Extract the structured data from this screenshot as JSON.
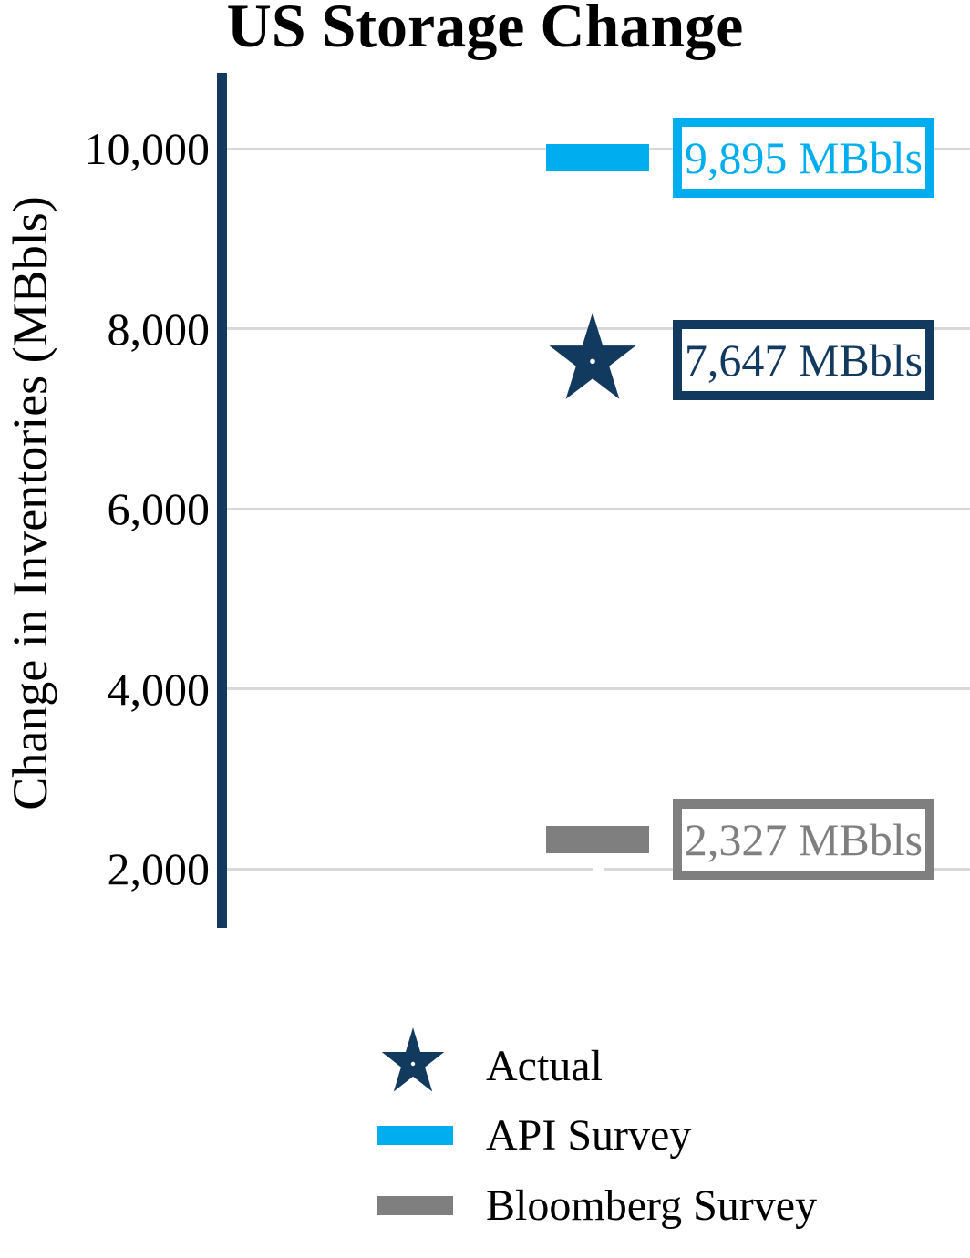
{
  "chart_data": {
    "type": "scatter",
    "title": "US Storage Change",
    "xlabel": "",
    "ylabel": "Change in Inventories (MBbls)",
    "ylim": [
      1300,
      10850
    ],
    "grid": true,
    "legend_position": "bottom",
    "yticks": [
      {
        "value": 10000,
        "label": "10,000"
      },
      {
        "value": 8000,
        "label": "8,000"
      },
      {
        "value": 6000,
        "label": "6,000"
      },
      {
        "value": 4000,
        "label": "4,000"
      },
      {
        "value": 2000,
        "label": "2,000"
      }
    ],
    "series": [
      {
        "name": "API Survey",
        "marker": "bar",
        "value": 9895,
        "callout_label": "9,895 MBbls",
        "color": "#00aeef"
      },
      {
        "name": "Actual",
        "marker": "star",
        "value": 7647,
        "callout_label": "7,647 MBbls",
        "color": "#12395e"
      },
      {
        "name": "Bloomberg Survey",
        "marker": "bar",
        "value": 2327,
        "callout_label": "2,327 MBbls",
        "color": "#7f7f7f"
      }
    ],
    "legend": [
      {
        "label": "Actual",
        "marker": "star",
        "color": "#12395e"
      },
      {
        "label": "API Survey",
        "marker": "bar",
        "color": "#00aeef"
      },
      {
        "label": "Bloomberg Survey",
        "marker": "bar",
        "color": "#7f7f7f"
      }
    ],
    "units": "MBbls"
  },
  "colors": {
    "axis": "#12395e",
    "gridline": "#d9d9d9",
    "background": "#ffffff",
    "text": "#000000",
    "star_center_dot": "#ffffff"
  }
}
